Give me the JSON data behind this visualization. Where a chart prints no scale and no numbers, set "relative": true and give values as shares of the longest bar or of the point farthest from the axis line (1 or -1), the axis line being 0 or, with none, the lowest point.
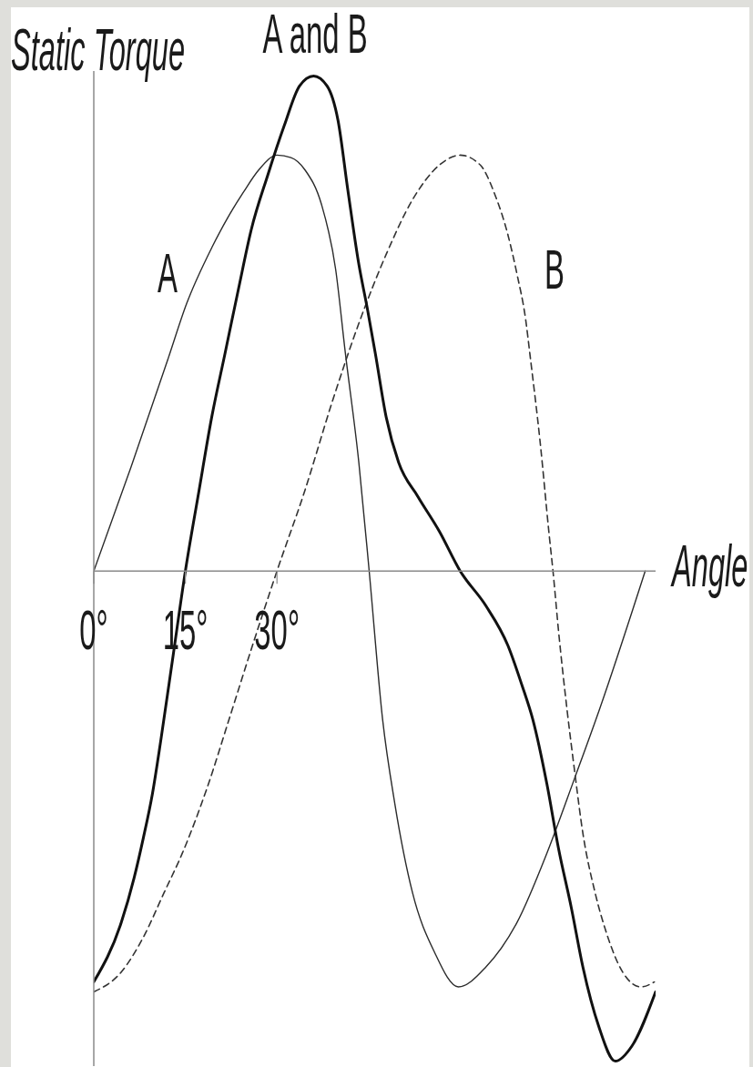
{
  "chart_data": {
    "type": "line",
    "xlabel": "Angle",
    "ylabel": "Static Torque",
    "relative": true,
    "xlim": [
      0,
      92
    ],
    "xticks": [
      {
        "value": 0,
        "label": "0°"
      },
      {
        "value": 15,
        "label": "15°"
      },
      {
        "value": 30,
        "label": "30°"
      }
    ],
    "grid": false,
    "legend": false,
    "marker": "none",
    "series": [
      {
        "name": "A",
        "color": "#2b2b2b",
        "x": [
          0,
          6.1,
          12.2,
          15.2,
          19.4,
          22,
          24.5,
          27,
          30,
          32.3,
          34.6,
          37.3,
          39.6,
          41.2,
          43.4,
          45.1,
          47.3,
          49.3,
          52.2,
          55.8,
          59.7,
          64.2,
          69.3,
          74.2,
          78.7,
          82.8,
          90.3
        ],
        "values": [
          0,
          0.21,
          0.43,
          0.54,
          0.655,
          0.715,
          0.765,
          0.81,
          0.84,
          0.835,
          0.81,
          0.74,
          0.61,
          0.44,
          0.22,
          0,
          -0.3,
          -0.47,
          -0.65,
          -0.77,
          -0.84,
          -0.8,
          -0.71,
          -0.57,
          -0.42,
          -0.28,
          0
        ]
      },
      {
        "name": "B",
        "color": "#333333",
        "line_style": "dashed",
        "x": [
          0,
          4.5,
          8.1,
          11.5,
          14.5,
          18.5,
          22.4,
          26,
          30,
          34.5,
          39,
          43.4,
          47.9,
          52.2,
          56.6,
          60,
          63.3,
          65.7,
          67.8,
          69.3,
          70.7,
          71.5,
          73.1,
          74.6,
          75.2,
          76.1,
          77.5,
          78.7,
          80.1,
          82.1,
          84.2,
          86.6,
          89.6,
          91.8
        ],
        "values": [
          -0.85,
          -0.81,
          -0.74,
          -0.65,
          -0.57,
          -0.44,
          -0.29,
          -0.15,
          0,
          0.16,
          0.34,
          0.5,
          0.64,
          0.75,
          0.82,
          0.84,
          0.82,
          0.76,
          0.68,
          0.6,
          0.51,
          0.43,
          0.26,
          0.07,
          0,
          -0.12,
          -0.28,
          -0.4,
          -0.53,
          -0.65,
          -0.74,
          -0.81,
          -0.84,
          -0.83
        ]
      },
      {
        "name": "A and B",
        "color": "#111111",
        "x": [
          0,
          4.5,
          6.6,
          8.1,
          9.6,
          11,
          13,
          15,
          17.2,
          19.3,
          21.5,
          23.7,
          25.8,
          28.5,
          31.2,
          33.7,
          36,
          38.2,
          40,
          41.6,
          43.4,
          44.8,
          46.1,
          47.9,
          49.9,
          53.1,
          56.6,
          60,
          64.2,
          67.8,
          70.1,
          71.9,
          74.2,
          76.1,
          78.2,
          80.1,
          82.7,
          85.4,
          88.1,
          92
        ],
        "values": [
          -0.83,
          -0.71,
          -0.62,
          -0.54,
          -0.45,
          -0.34,
          -0.17,
          0,
          0.16,
          0.31,
          0.44,
          0.57,
          0.69,
          0.8,
          0.9,
          0.98,
          1,
          0.98,
          0.91,
          0.77,
          0.62,
          0.53,
          0.44,
          0.31,
          0.22,
          0.15,
          0.08,
          0,
          -0.07,
          -0.15,
          -0.23,
          -0.3,
          -0.43,
          -0.56,
          -0.68,
          -0.8,
          -0.92,
          -0.99,
          -0.96,
          -0.85
        ]
      }
    ]
  }
}
